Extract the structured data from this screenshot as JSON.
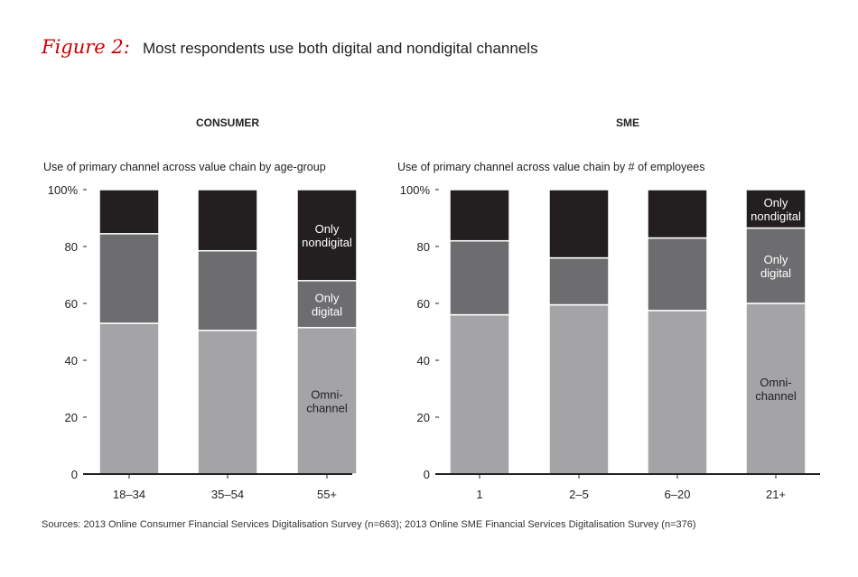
{
  "header": {
    "figure_label": "Figure 2:",
    "title": "Most respondents use both digital and nondigital channels"
  },
  "chart_data": [
    {
      "type": "bar",
      "stacked": true,
      "panel_title": "CONSUMER",
      "subtitle": "Use of primary channel across value chain by age-group",
      "categories": [
        "18–34",
        "35–54",
        "55+"
      ],
      "series": [
        {
          "name": "Omni-channel",
          "values": [
            53,
            50.5,
            51.5
          ],
          "color": "#a4a4a7"
        },
        {
          "name": "Only digital",
          "values": [
            31.5,
            28,
            16.5
          ],
          "color": "#6d6d70"
        },
        {
          "name": "Only nondigital",
          "values": [
            15.5,
            21.5,
            32
          ],
          "color": "#231f20"
        }
      ],
      "segment_labels": {
        "Omni-channel": "Omni-\nchannel",
        "Only digital": "Only\ndigital",
        "Only nondigital": "Only\nnondigital"
      },
      "labeled_category": "55+",
      "yticks": [
        0,
        20,
        40,
        60,
        80,
        100
      ],
      "ytick_labels": [
        "0",
        "20",
        "40",
        "60",
        "80",
        "100%"
      ],
      "ylim": [
        0,
        100
      ]
    },
    {
      "type": "bar",
      "stacked": true,
      "panel_title": "SME",
      "subtitle": "Use of primary channel across value chain by # of employees",
      "categories": [
        "1",
        "2–5",
        "6–20",
        "21+"
      ],
      "series": [
        {
          "name": "Omni-channel",
          "values": [
            56,
            59.5,
            57.5,
            60
          ],
          "color": "#a4a4a7"
        },
        {
          "name": "Only digital",
          "values": [
            26,
            16.5,
            25.5,
            26.5
          ],
          "color": "#6d6d70"
        },
        {
          "name": "Only nondigital",
          "values": [
            18,
            24,
            17,
            13.5
          ],
          "color": "#231f20"
        }
      ],
      "segment_labels": {
        "Omni-channel": "Omni-\nchannel",
        "Only digital": "Only\ndigital",
        "Only nondigital": "Only\nnondigital"
      },
      "labeled_category": "21+",
      "yticks": [
        0,
        20,
        40,
        60,
        80,
        100
      ],
      "ytick_labels": [
        "0",
        "20",
        "40",
        "60",
        "80",
        "100%"
      ],
      "ylim": [
        0,
        100
      ]
    }
  ],
  "footer": {
    "sources": "Sources: 2013 Online Consumer Financial Services Digitalisation Survey (n=663); 2013 Online SME Financial Services Digitalisation Survey (n=376)"
  }
}
